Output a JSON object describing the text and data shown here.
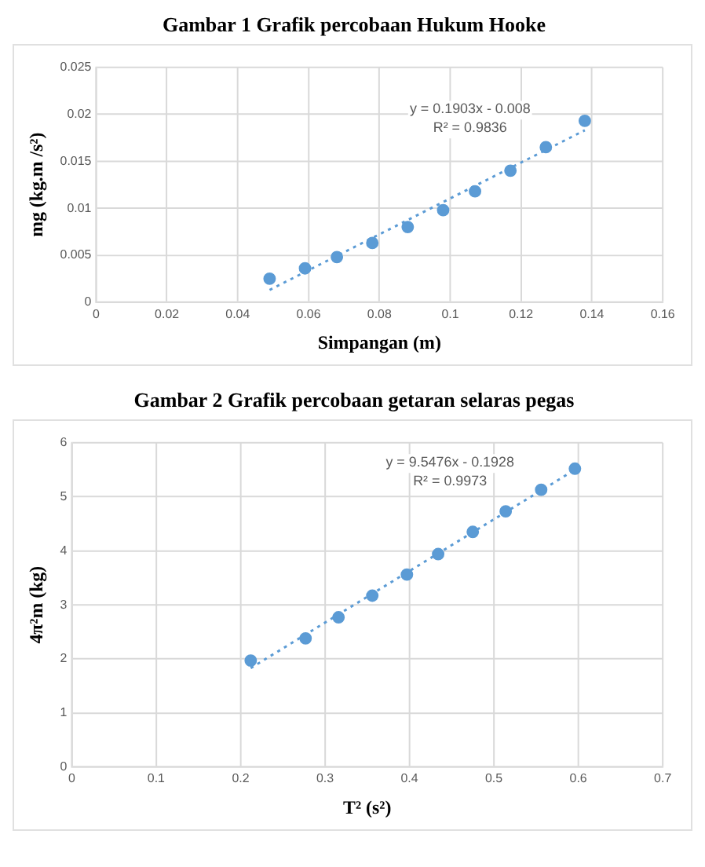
{
  "chart_data": [
    {
      "type": "scatter",
      "title": "Gambar 1  Grafik percobaan Hukum Hooke",
      "xlabel": "Simpangan (m)",
      "ylabel": "mg (kg.m /s²)",
      "xlim": [
        0,
        0.16
      ],
      "xticks": [
        0,
        0.02,
        0.04,
        0.06,
        0.08,
        0.1,
        0.12,
        0.14,
        0.16
      ],
      "ylim": [
        0,
        0.025
      ],
      "yticks": [
        0,
        0.005,
        0.01,
        0.015,
        0.02,
        0.025
      ],
      "grid": true,
      "legend": false,
      "marker": "circle",
      "annotations": [
        "y = 0.1903x - 0.008",
        "R² = 0.9836"
      ],
      "series": [
        {
          "type": "scatter",
          "color": "#5b9bd5",
          "x": [
            0.049,
            0.059,
            0.068,
            0.078,
            0.088,
            0.098,
            0.107,
            0.117,
            0.127,
            0.138
          ],
          "values": [
            0.0025,
            0.0036,
            0.0048,
            0.0063,
            0.008,
            0.0098,
            0.0118,
            0.014,
            0.0165,
            0.0193
          ]
        },
        {
          "type": "line",
          "color": "#5b9bd5",
          "line_style": "dotted",
          "marker": "none",
          "x": [
            0.049,
            0.138
          ],
          "values": [
            0.0013,
            0.0183
          ]
        }
      ]
    },
    {
      "type": "scatter",
      "title": "Gambar 2  Grafik percobaan getaran selaras pegas",
      "xlabel": "T² (s²)",
      "ylabel": "4π²m (kg)",
      "xlim": [
        0,
        0.7
      ],
      "xticks": [
        0,
        0.1,
        0.2,
        0.3,
        0.4,
        0.5,
        0.6,
        0.7
      ],
      "ylim": [
        0,
        6
      ],
      "yticks": [
        0,
        1,
        2,
        3,
        4,
        5,
        6
      ],
      "grid": true,
      "legend": false,
      "marker": "circle",
      "annotations": [
        "y = 9.5476x - 0.1928",
        "R² = 0.9973"
      ],
      "series": [
        {
          "type": "scatter",
          "color": "#5b9bd5",
          "x": [
            0.212,
            0.277,
            0.316,
            0.356,
            0.397,
            0.434,
            0.475,
            0.514,
            0.556,
            0.596
          ],
          "values": [
            1.97,
            2.38,
            2.77,
            3.17,
            3.56,
            3.94,
            4.35,
            4.73,
            5.13,
            5.52
          ]
        },
        {
          "type": "line",
          "color": "#5b9bd5",
          "line_style": "dotted",
          "marker": "none",
          "x": [
            0.212,
            0.596
          ],
          "values": [
            1.83,
            5.5
          ]
        }
      ]
    }
  ]
}
